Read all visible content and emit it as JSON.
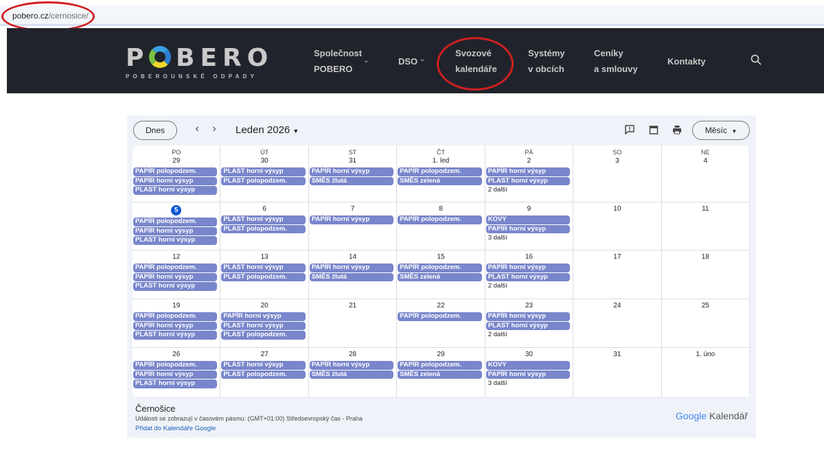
{
  "browser": {
    "url_domain": "pobero.cz",
    "url_path": "/cernosice/"
  },
  "nav": {
    "logo_text": "POBERO",
    "logo_subtitle": "POBEROUNSKÉ ODPADY",
    "items": [
      {
        "line1": "Společnost",
        "line2": "POBERO",
        "dropdown": true
      },
      {
        "line1": "DSO",
        "line2": "",
        "dropdown": true
      },
      {
        "line1": "Svozové",
        "line2": "kalendáře"
      },
      {
        "line1": "Systémy",
        "line2": "v obcích"
      },
      {
        "line1": "Ceníky",
        "line2": "a smlouvy"
      },
      {
        "line1": "Kontakty",
        "line2": ""
      }
    ],
    "search_icon": "search-icon"
  },
  "annotations": {
    "color": "#d02020",
    "circled": [
      "url",
      "Svozové kalendáře"
    ]
  },
  "calendar": {
    "today_label": "Dnes",
    "prev": "‹",
    "next": "›",
    "month_label": "Leden 2026",
    "view_label": "Měsíc",
    "event_color": "#7986cb",
    "today_color": "#0b57d0",
    "weekdays": [
      "PO",
      "ÚT",
      "ST",
      "ČT",
      "PÁ",
      "SO",
      "NE"
    ],
    "weeks": [
      [
        {
          "d": "29",
          "ev": [
            "PAPÍR polopodzem.",
            "PAPÍR horní výsyp",
            "PLAST horní výsyp"
          ]
        },
        {
          "d": "30",
          "ev": [
            "PLAST horní výsyp",
            "PLAST polopodzem."
          ]
        },
        {
          "d": "31",
          "ev": [
            "PAPÍR horní výsyp",
            "SMĚS žlutá"
          ]
        },
        {
          "d": "1. led",
          "ev": [
            "PAPÍR polopodzem.",
            "SMĚS zelená"
          ]
        },
        {
          "d": "2",
          "ev": [
            "PAPÍR horní výsyp",
            "PLAST horní výsyp"
          ],
          "more": "2 další"
        },
        {
          "d": "3",
          "ev": []
        },
        {
          "d": "4",
          "ev": []
        }
      ],
      [
        {
          "d": "5",
          "today": true,
          "ev": [
            "PAPÍR polopodzem.",
            "PAPÍR horní výsyp",
            "PLAST horní výsyp"
          ]
        },
        {
          "d": "6",
          "ev": [
            "PLAST horní výsyp",
            "PLAST polopodzem."
          ]
        },
        {
          "d": "7",
          "ev": [
            "PAPÍR horní výsyp"
          ]
        },
        {
          "d": "8",
          "ev": [
            "PAPÍR polopodzem."
          ]
        },
        {
          "d": "9",
          "ev": [
            "KOVY",
            "PAPÍR horní výsyp"
          ],
          "more": "3 další"
        },
        {
          "d": "10",
          "ev": []
        },
        {
          "d": "11",
          "ev": []
        }
      ],
      [
        {
          "d": "12",
          "ev": [
            "PAPÍR polopodzem.",
            "PAPÍR horní výsyp",
            "PLAST horní výsyp"
          ]
        },
        {
          "d": "13",
          "ev": [
            "PLAST horní výsyp",
            "PLAST polopodzem."
          ]
        },
        {
          "d": "14",
          "ev": [
            "PAPÍR horní výsyp",
            "SMĚS žlutá"
          ]
        },
        {
          "d": "15",
          "ev": [
            "PAPÍR polopodzem.",
            "SMĚS zelená"
          ]
        },
        {
          "d": "16",
          "ev": [
            "PAPÍR horní výsyp",
            "PLAST horní výsyp"
          ],
          "more": "2 další"
        },
        {
          "d": "17",
          "ev": []
        },
        {
          "d": "18",
          "ev": []
        }
      ],
      [
        {
          "d": "19",
          "ev": [
            "PAPÍR polopodzem.",
            "PAPÍR horní výsyp",
            "PLAST horní výsyp"
          ]
        },
        {
          "d": "20",
          "ev": [
            "PAPÍR horní výsyp",
            "PLAST horní výsyp",
            "PLAST polopodzem."
          ]
        },
        {
          "d": "21",
          "ev": []
        },
        {
          "d": "22",
          "ev": [
            "PAPÍR polopodzem."
          ]
        },
        {
          "d": "23",
          "ev": [
            "PAPÍR horní výsyp",
            "PLAST horní výsyp"
          ],
          "more": "2 další"
        },
        {
          "d": "24",
          "ev": []
        },
        {
          "d": "25",
          "ev": []
        }
      ],
      [
        {
          "d": "26",
          "ev": [
            "PAPÍR polopodzem.",
            "PAPÍR horní výsyp",
            "PLAST horní výsyp"
          ]
        },
        {
          "d": "27",
          "ev": [
            "PLAST horní výsyp",
            "PLAST polopodzem."
          ]
        },
        {
          "d": "28",
          "ev": [
            "PAPÍR horní výsyp",
            "SMĚS žlutá"
          ]
        },
        {
          "d": "29",
          "ev": [
            "PAPÍR polopodzem.",
            "SMĚS zelená"
          ]
        },
        {
          "d": "30",
          "ev": [
            "KOVY",
            "PAPÍR horní výsyp"
          ],
          "more": "3 další"
        },
        {
          "d": "31",
          "ev": []
        },
        {
          "d": "1. úno",
          "ev": []
        }
      ]
    ],
    "footer": {
      "title": "Černošice",
      "timezone": "Události se zobrazují v časovém pásmu: (GMT+01:00) Středoevropský čas - Praha",
      "add_link": "Přidat do Kalendáře Google",
      "brand_google": "Google",
      "brand_product": "Kalendář"
    }
  }
}
